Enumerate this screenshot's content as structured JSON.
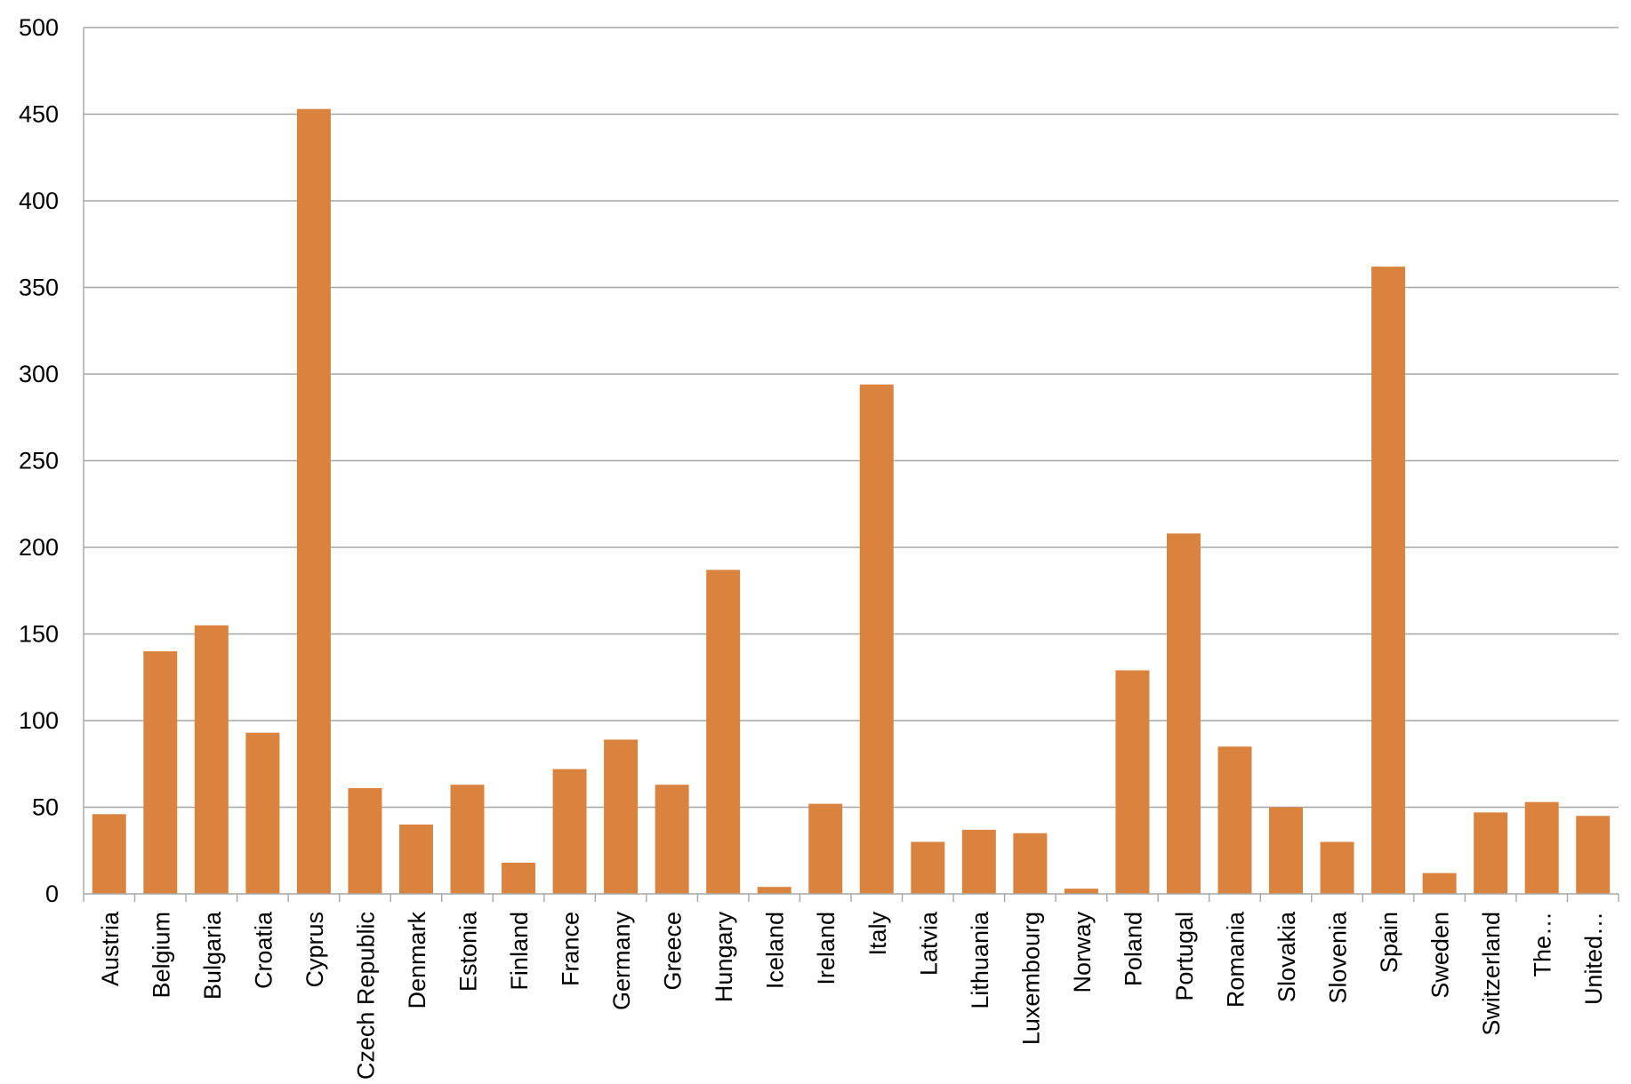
{
  "chart_data": {
    "type": "bar",
    "title": "",
    "xlabel": "",
    "ylabel": "",
    "ylim": [
      0,
      500
    ],
    "yticks": [
      0,
      50,
      100,
      150,
      200,
      250,
      300,
      350,
      400,
      450,
      500
    ],
    "grid": true,
    "legend": "none",
    "bar_color": "#DA833F",
    "categories": [
      "Austria",
      "Belgium",
      "Bulgaria",
      "Croatia",
      "Cyprus",
      "Czech Republic",
      "Denmark",
      "Estonia",
      "Finland",
      "France",
      "Germany",
      "Greece",
      "Hungary",
      "Iceland",
      "Ireland",
      "Italy",
      "Latvia",
      "Lithuania",
      "Luxembourg",
      "Norway",
      "Poland",
      "Portugal",
      "Romania",
      "Slovakia",
      "Slovenia",
      "Spain",
      "Sweden",
      "Switzerland",
      "The…",
      "United…"
    ],
    "values": [
      46,
      140,
      155,
      93,
      453,
      61,
      40,
      63,
      18,
      72,
      89,
      63,
      187,
      4,
      52,
      294,
      30,
      37,
      35,
      3,
      129,
      208,
      85,
      50,
      30,
      362,
      12,
      47,
      53,
      45
    ]
  }
}
